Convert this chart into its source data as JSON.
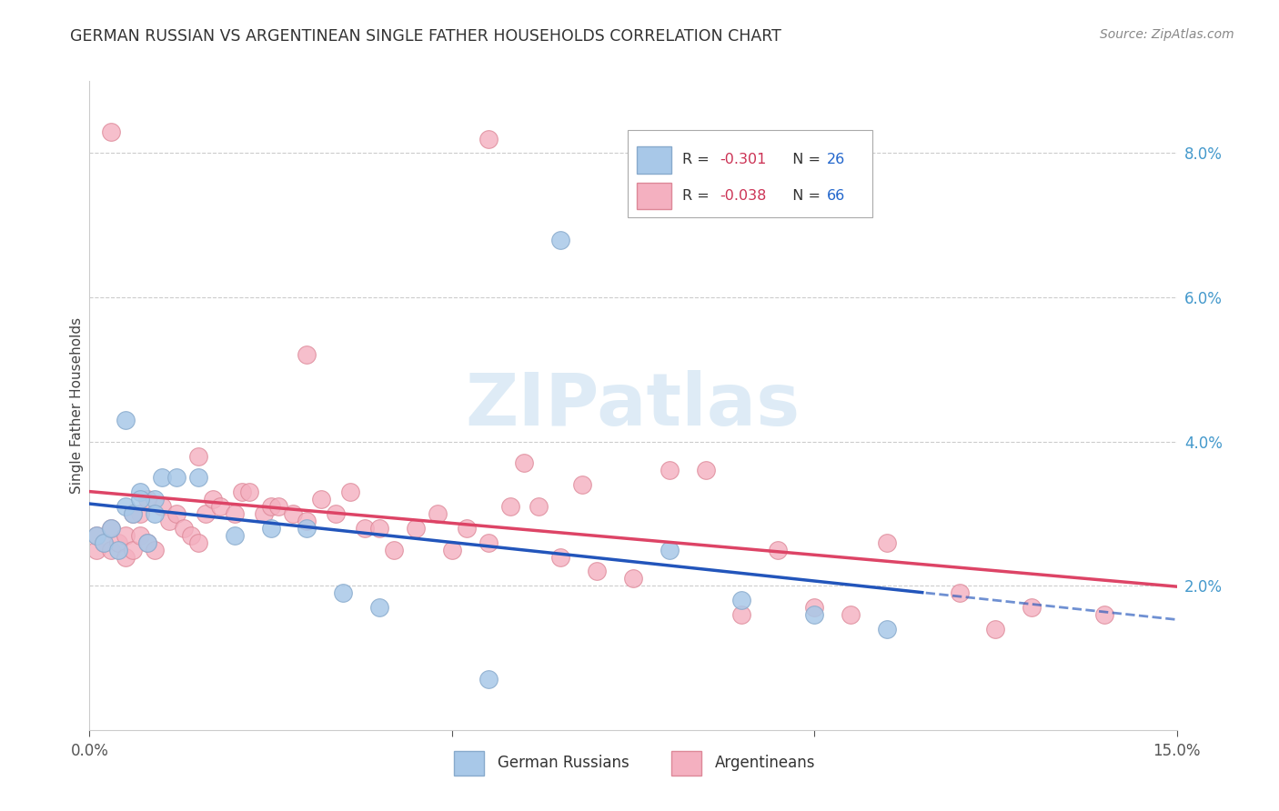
{
  "title": "GERMAN RUSSIAN VS ARGENTINEAN SINGLE FATHER HOUSEHOLDS CORRELATION CHART",
  "source": "Source: ZipAtlas.com",
  "ylabel": "Single Father Households",
  "ytick_labels": [
    "2.0%",
    "4.0%",
    "6.0%",
    "8.0%"
  ],
  "ytick_values": [
    0.02,
    0.04,
    0.06,
    0.08
  ],
  "xtick_labels": [
    "0.0%",
    "",
    "15.0%"
  ],
  "xtick_values": [
    0.0,
    0.075,
    0.15
  ],
  "xlim": [
    0.0,
    0.15
  ],
  "ylim": [
    0.0,
    0.09
  ],
  "watermark_text": "ZIPatlas",
  "watermark_color": "#c8dff0",
  "blue_color": "#a8c8e8",
  "blue_edge": "#88aacc",
  "pink_color": "#f4b0c0",
  "pink_edge": "#dd8898",
  "blue_line_color": "#2255bb",
  "pink_line_color": "#dd4466",
  "title_color": "#333333",
  "source_color": "#888888",
  "grid_color": "#cccccc",
  "tick_color": "#555555",
  "right_tick_color": "#4499cc",
  "legend_r_color": "#cc3355",
  "legend_n_color": "#2266cc",
  "blue_scatter_x": [
    0.001,
    0.002,
    0.003,
    0.004,
    0.005,
    0.006,
    0.007,
    0.008,
    0.009,
    0.01,
    0.012,
    0.015,
    0.02,
    0.025,
    0.03,
    0.04,
    0.055,
    0.065,
    0.08,
    0.09,
    0.1,
    0.11,
    0.005,
    0.007,
    0.009,
    0.035
  ],
  "blue_scatter_y": [
    0.027,
    0.026,
    0.028,
    0.025,
    0.031,
    0.03,
    0.033,
    0.026,
    0.032,
    0.035,
    0.035,
    0.035,
    0.027,
    0.028,
    0.028,
    0.017,
    0.007,
    0.068,
    0.025,
    0.018,
    0.016,
    0.014,
    0.043,
    0.032,
    0.03,
    0.019
  ],
  "pink_scatter_x": [
    0.001,
    0.001,
    0.002,
    0.003,
    0.003,
    0.004,
    0.005,
    0.005,
    0.006,
    0.007,
    0.007,
    0.008,
    0.009,
    0.01,
    0.011,
    0.012,
    0.013,
    0.014,
    0.015,
    0.016,
    0.017,
    0.018,
    0.02,
    0.021,
    0.022,
    0.024,
    0.025,
    0.026,
    0.028,
    0.03,
    0.032,
    0.034,
    0.036,
    0.038,
    0.04,
    0.042,
    0.045,
    0.048,
    0.05,
    0.052,
    0.055,
    0.058,
    0.06,
    0.062,
    0.065,
    0.068,
    0.07,
    0.075,
    0.08,
    0.085,
    0.09,
    0.095,
    0.1,
    0.105,
    0.11,
    0.12,
    0.125,
    0.13,
    0.03,
    0.055,
    0.003,
    0.006,
    0.008,
    0.14,
    0.015
  ],
  "pink_scatter_y": [
    0.025,
    0.027,
    0.026,
    0.028,
    0.025,
    0.026,
    0.024,
    0.027,
    0.025,
    0.027,
    0.03,
    0.026,
    0.025,
    0.031,
    0.029,
    0.03,
    0.028,
    0.027,
    0.026,
    0.03,
    0.032,
    0.031,
    0.03,
    0.033,
    0.033,
    0.03,
    0.031,
    0.031,
    0.03,
    0.029,
    0.032,
    0.03,
    0.033,
    0.028,
    0.028,
    0.025,
    0.028,
    0.03,
    0.025,
    0.028,
    0.026,
    0.031,
    0.037,
    0.031,
    0.024,
    0.034,
    0.022,
    0.021,
    0.036,
    0.036,
    0.016,
    0.025,
    0.017,
    0.016,
    0.026,
    0.019,
    0.014,
    0.017,
    0.052,
    0.082,
    0.083,
    0.03,
    0.032,
    0.016,
    0.038
  ]
}
